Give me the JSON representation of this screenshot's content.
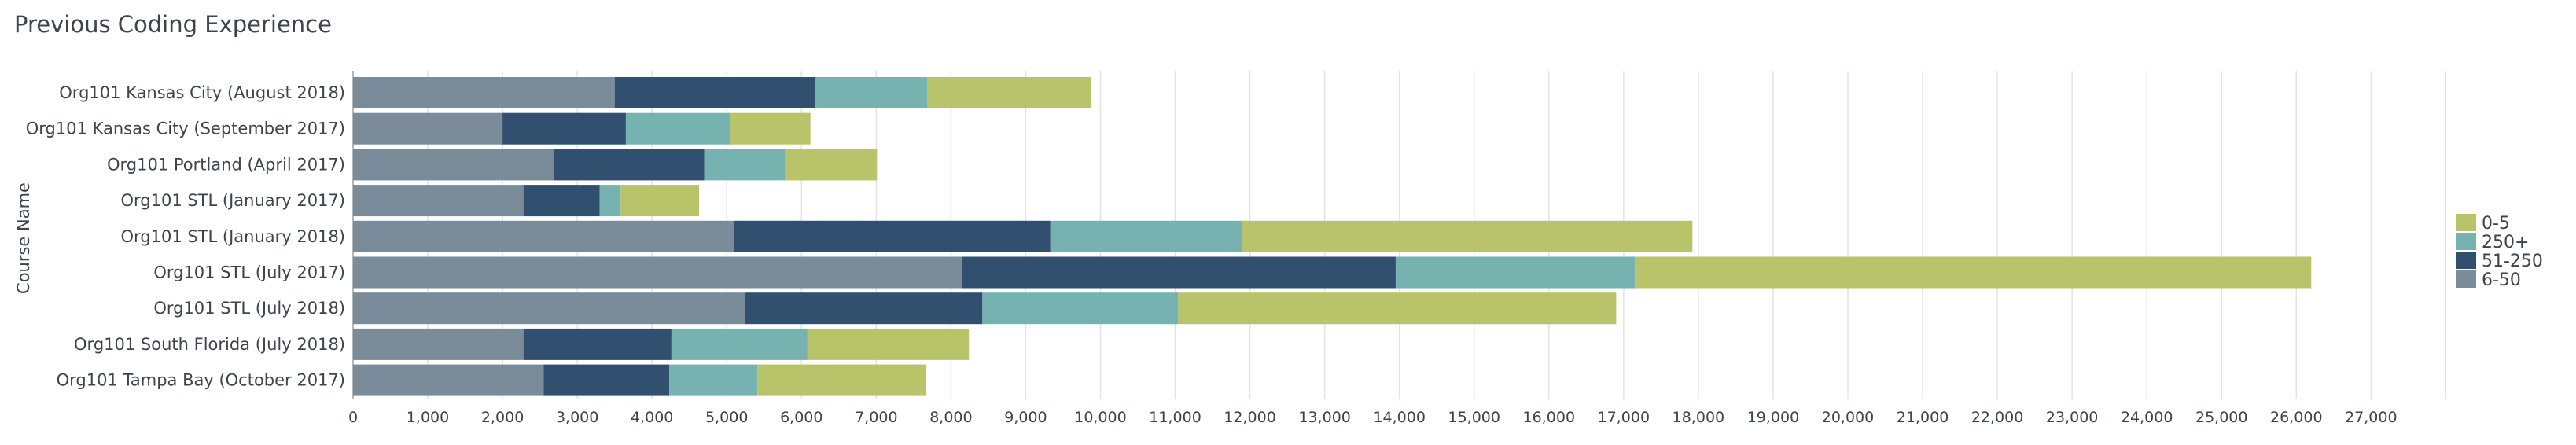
{
  "chart_data": {
    "type": "bar",
    "orientation": "horizontal",
    "stacked": true,
    "title": "Previous Coding Experience",
    "ylabel": "Course Name",
    "xlabel": "",
    "xlim": [
      0,
      28000
    ],
    "xticks": [
      "0",
      "1,000",
      "2,000",
      "3,000",
      "4,000",
      "5,000",
      "6,000",
      "7,000",
      "8,000",
      "9,000",
      "10,000",
      "11,000",
      "12,000",
      "13,000",
      "14,000",
      "15,000",
      "16,000",
      "17,000",
      "18,000",
      "19,000",
      "20,000",
      "21,000",
      "22,000",
      "23,000",
      "24,000",
      "25,000",
      "26,000",
      "27,000"
    ],
    "grid": true,
    "legend_position": "right",
    "categories": [
      "Org101 Kansas City (August 2018)",
      "Org101 Kansas City (September 2017)",
      "Org101 Portland (April 2017)",
      "Org101 STL (January 2017)",
      "Org101 STL (January 2018)",
      "Org101 STL (July 2017)",
      "Org101 STL (July 2018)",
      "Org101 South Florida (July 2018)",
      "Org101 Tampa Bay (October 2017)"
    ],
    "series": [
      {
        "name": "6-50",
        "color": "#7a8b99",
        "values": [
          3500,
          2000,
          2680,
          2280,
          5100,
          8150,
          5250,
          2280,
          2550
        ]
      },
      {
        "name": "51-250",
        "color": "#31506f",
        "values": [
          2680,
          1650,
          2020,
          1020,
          4230,
          5800,
          3170,
          1980,
          1680
        ]
      },
      {
        "name": "250+",
        "color": "#76b2b0",
        "values": [
          1500,
          1400,
          1080,
          280,
          2560,
          3200,
          2620,
          1820,
          1180
        ]
      },
      {
        "name": "0-5",
        "color": "#b9c46a",
        "values": [
          2200,
          1070,
          1230,
          1050,
          6030,
          9050,
          5860,
          2160,
          2250
        ]
      }
    ],
    "legend_order": [
      "0-5",
      "250+",
      "51-250",
      "6-50"
    ]
  }
}
